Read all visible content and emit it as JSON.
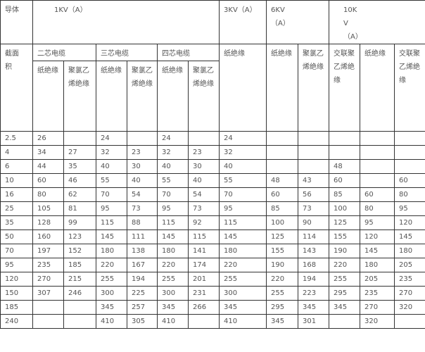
{
  "header": {
    "conductor": "导体",
    "kv1": "1KV（A）",
    "kv3": "3KV（A）",
    "kv6": "6KV（A）",
    "kv10": "10KV（A）",
    "cross_section": "截面积",
    "two_core": "二芯电缆",
    "three_core": "三芯电缆",
    "four_core": "四芯电缆",
    "paper": "纸绝缘",
    "pvc": "聚氯乙烯绝缘",
    "xlpe": "交联聚乙烯绝缘"
  },
  "rows": [
    [
      "2.5",
      "26",
      "",
      "24",
      "",
      "24",
      "",
      "24",
      "",
      "",
      "",
      "",
      ""
    ],
    [
      "4",
      "34",
      "27",
      "32",
      "23",
      "32",
      "23",
      "32",
      "",
      "",
      "",
      "",
      ""
    ],
    [
      "6",
      "44",
      "35",
      "40",
      "30",
      "40",
      "30",
      "40",
      "",
      "",
      "48",
      "",
      ""
    ],
    [
      "10",
      "60",
      "46",
      "55",
      "40",
      "55",
      "40",
      "55",
      "48",
      "43",
      "60",
      "",
      "60"
    ],
    [
      "16",
      "80",
      "62",
      "70",
      "54",
      "70",
      "54",
      "70",
      "60",
      "56",
      "85",
      "60",
      "80"
    ],
    [
      "25",
      "105",
      "81",
      "95",
      "73",
      "95",
      "73",
      "95",
      "85",
      "73",
      "100",
      "80",
      "95"
    ],
    [
      "35",
      "128",
      "99",
      "115",
      "88",
      "115",
      "92",
      "115",
      "100",
      "90",
      "125",
      "95",
      "120"
    ],
    [
      "50",
      "160",
      "123",
      "145",
      "111",
      "145",
      "115",
      "145",
      "125",
      "114",
      "155",
      "120",
      "145"
    ],
    [
      "70",
      "197",
      "152",
      "180",
      "138",
      "180",
      "141",
      "180",
      "155",
      "143",
      "190",
      "145",
      "180"
    ],
    [
      "95",
      "235",
      "185",
      "220",
      "167",
      "220",
      "174",
      "220",
      "190",
      "168",
      "220",
      "180",
      "205"
    ],
    [
      "120",
      "270",
      "215",
      "255",
      "194",
      "255",
      "201",
      "255",
      "220",
      "194",
      "255",
      "205",
      "235"
    ],
    [
      "150",
      "307",
      "246",
      "300",
      "225",
      "300",
      "231",
      "300",
      "255",
      "223",
      "295",
      "235",
      "270"
    ],
    [
      "185",
      "",
      "",
      "345",
      "257",
      "345",
      "266",
      "345",
      "295",
      "345",
      "345",
      "270",
      "320"
    ],
    [
      "240",
      "",
      "",
      "410",
      "305",
      "410",
      "",
      "410",
      "345",
      "301",
      "",
      "320",
      ""
    ]
  ]
}
